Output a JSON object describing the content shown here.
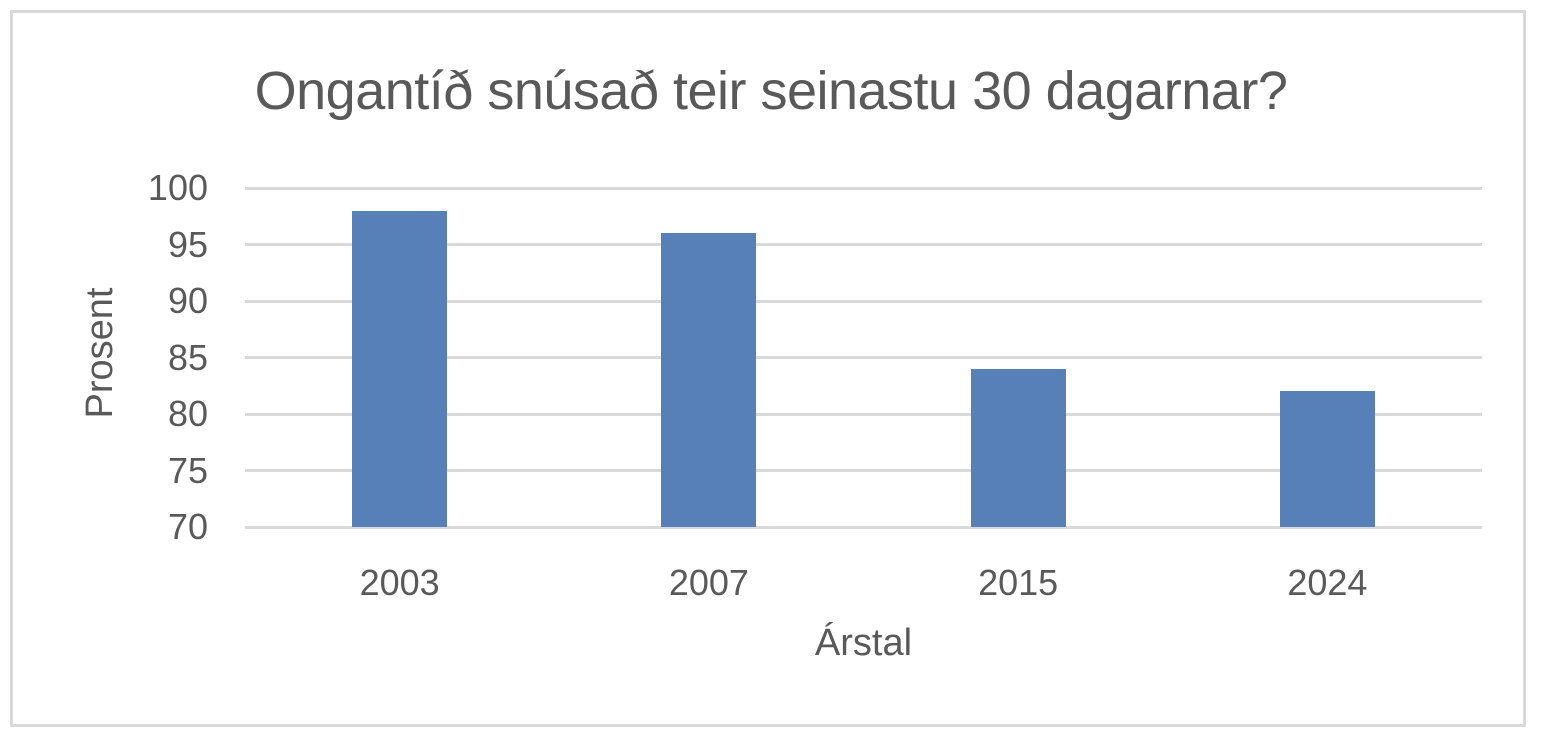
{
  "chart_data": {
    "type": "bar",
    "title": "Ongantíð snúsað teir seinastu 30 dagarnar?",
    "categories": [
      "2003",
      "2007",
      "2015",
      "2024"
    ],
    "values": [
      98,
      96,
      84,
      82
    ],
    "xlabel": "Árstal",
    "ylabel": "Prosent",
    "ylim": [
      70,
      100
    ],
    "yticks": [
      70,
      75,
      80,
      85,
      90,
      95,
      100
    ],
    "grid": true,
    "legend_position": "none",
    "colors": {
      "bar": "#5880B8",
      "gridline": "#d9d9d9",
      "frame_border": "#d9d9d9",
      "text": "#595959",
      "background": "#ffffff"
    }
  }
}
